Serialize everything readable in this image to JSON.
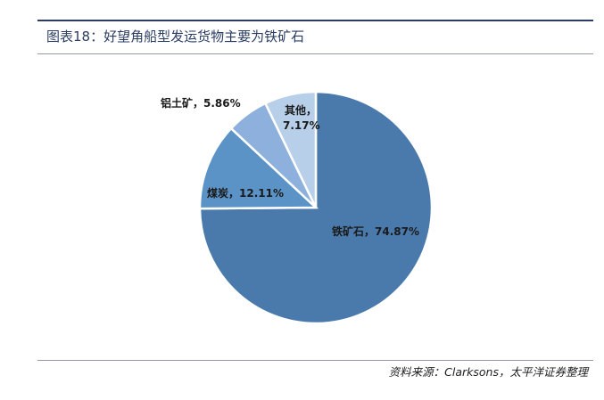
{
  "header": {
    "title": "图表18：好望角船型发运货物主要为铁矿石"
  },
  "footer": {
    "source": "资料来源：Clarksons，太平洋证券整理"
  },
  "chart_data": {
    "type": "pie",
    "title": "",
    "slices": [
      {
        "label": "铁矿石，74.87%",
        "value": 74.87,
        "color": "#4a7aab"
      },
      {
        "label": "煤炭，12.11%",
        "value": 12.11,
        "color": "#5b93c7"
      },
      {
        "label": "铝土矿，5.86%",
        "value": 5.86,
        "color": "#8db1dc"
      },
      {
        "label": "其他，",
        "label2": "7.17%",
        "value": 7.17,
        "color": "#b8cfea"
      }
    ]
  }
}
